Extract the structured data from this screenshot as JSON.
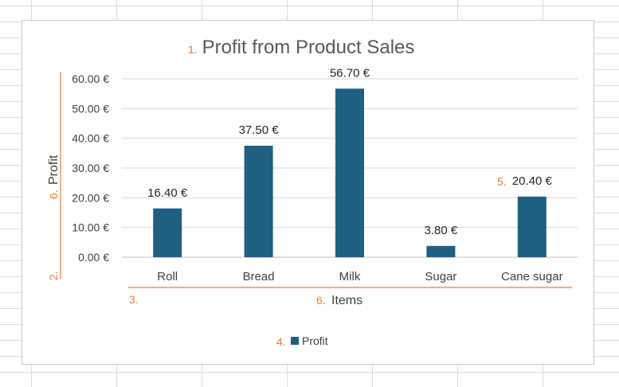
{
  "chart_data": {
    "type": "bar",
    "title": "Profit from Product Sales",
    "xlabel": "Items",
    "ylabel": "Profit",
    "categories": [
      "Roll",
      "Bread",
      "Milk",
      "Sugar",
      "Cane sugar"
    ],
    "series": [
      {
        "name": "Profit",
        "values": [
          16.4,
          37.5,
          56.7,
          3.8,
          20.4
        ]
      }
    ],
    "data_labels": [
      "16.40 €",
      "37.50 €",
      "56.70 €",
      "3.80 €",
      "20.40 €"
    ],
    "y_ticks": [
      "0.00 €",
      "10.00 €",
      "20.00 €",
      "30.00 €",
      "40.00 €",
      "50.00 €",
      "60.00 €"
    ],
    "y_tick_values": [
      0,
      10,
      20,
      30,
      40,
      50,
      60
    ],
    "ylim": [
      0,
      60
    ],
    "grid": true,
    "legend": "bottom",
    "bar_color": "#1f5f82",
    "annotation_color": "#ee7d31",
    "annotations": {
      "title_marker": "1.",
      "y_axis_marker": "2.",
      "x_axis_marker": "3.",
      "legend_marker": "4.",
      "data_label_marker": "5.",
      "x_title_marker": "6.",
      "y_title_marker": "6."
    }
  }
}
